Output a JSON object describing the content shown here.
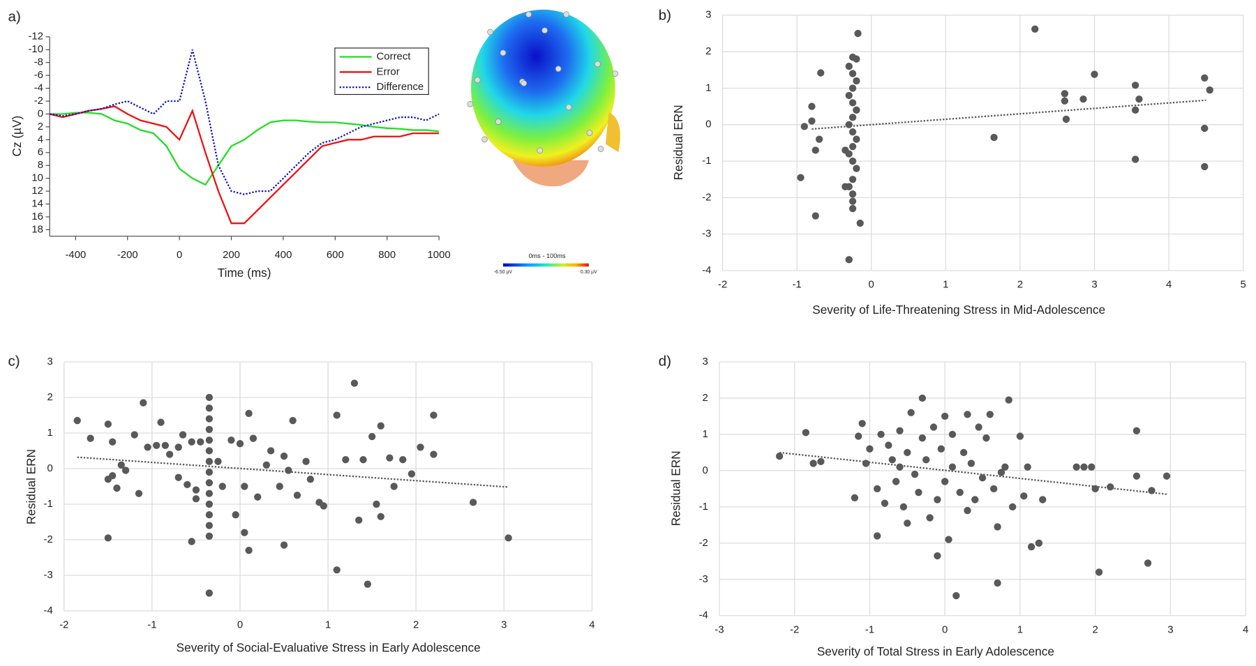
{
  "chart_data": [
    {
      "type": "line",
      "panel_label": "a)",
      "xlabel": "Time (ms)",
      "ylabel": "Cz (µV)",
      "y_inverted": true,
      "xlim": [
        -500,
        1000
      ],
      "xticks": [
        -400,
        -200,
        0,
        200,
        400,
        600,
        800,
        1000
      ],
      "ylim": [
        -12,
        19
      ],
      "yticks": [
        -12,
        -10,
        -8,
        -6,
        -4,
        -2,
        0,
        2,
        4,
        6,
        8,
        10,
        12,
        14,
        16,
        18
      ],
      "x": [
        -500,
        -450,
        -400,
        -350,
        -300,
        -250,
        -200,
        -150,
        -100,
        -50,
        0,
        50,
        100,
        150,
        200,
        250,
        300,
        350,
        400,
        450,
        500,
        550,
        600,
        650,
        700,
        750,
        800,
        850,
        900,
        950,
        1000
      ],
      "series": [
        {
          "name": "Correct",
          "color": "#22dd22",
          "style": "solid",
          "values": [
            0,
            0,
            -0.2,
            -0.2,
            0,
            1,
            1.5,
            2.5,
            3,
            5,
            8.5,
            10,
            11,
            8,
            5,
            4,
            2.5,
            1.3,
            1,
            1,
            1.2,
            1.3,
            1.3,
            1.5,
            1.7,
            2,
            2.2,
            2.3,
            2.5,
            2.5,
            2.7
          ]
        },
        {
          "name": "Error",
          "color": "#ee1111",
          "style": "solid",
          "values": [
            0,
            0.5,
            0,
            -0.5,
            -0.8,
            -1.2,
            0,
            1,
            1.5,
            2,
            4,
            -0.5,
            6,
            12,
            17,
            17,
            15,
            13,
            11,
            9,
            7,
            5,
            4.5,
            4,
            4,
            3.5,
            3.5,
            3.5,
            3,
            3,
            3
          ]
        },
        {
          "name": "Difference",
          "color": "#1111cc",
          "style": "dotted",
          "values": [
            0,
            0.3,
            0,
            -0.5,
            -0.8,
            -1.5,
            -2,
            -1,
            0,
            -2,
            -2,
            -10,
            -2,
            8,
            12,
            12.5,
            12,
            12,
            10,
            8,
            6,
            4.5,
            4,
            3,
            2,
            1.5,
            1,
            0.5,
            0.5,
            1,
            0
          ]
        }
      ],
      "colorbar": {
        "title": "0ms - 100ms",
        "min_label": "-6.50 µV",
        "max_label": "0.30 µV"
      }
    },
    {
      "type": "scatter",
      "panel_label": "b)",
      "xlabel": "Severity of Life-Threatening Stress in Mid-Adolescence",
      "ylabel": "Residual ERN",
      "color": "#595959",
      "grid": true,
      "xlim": [
        -2,
        5
      ],
      "xticks": [
        -2,
        -1,
        0,
        1,
        2,
        3,
        4,
        5
      ],
      "ylim": [
        -4,
        3
      ],
      "yticks": [
        -4,
        -3,
        -2,
        -1,
        0,
        1,
        2,
        3
      ],
      "x": [
        -0.3,
        -0.15,
        -0.25,
        -0.25,
        -0.25,
        -0.3,
        -0.25,
        -0.2,
        -0.25,
        -0.3,
        -0.25,
        -0.2,
        -0.25,
        -0.3,
        -0.25,
        -0.2,
        -0.25,
        -0.3,
        -0.25,
        -0.2,
        -0.25,
        -0.3,
        -0.25,
        -0.2,
        -0.18,
        -0.95,
        -0.75,
        -0.9,
        -0.8,
        -0.8,
        -0.75,
        -0.7,
        -0.68,
        -0.35,
        -0.35,
        1.65,
        2.2,
        2.6,
        2.6,
        2.62,
        2.85,
        3,
        3.55,
        3.55,
        3.55,
        3.6,
        4.48,
        4.48,
        4.48,
        4.55
      ],
      "y": [
        -3.7,
        -2.7,
        -2.3,
        -2.1,
        -1.9,
        -1.7,
        -1.5,
        -1.2,
        -1.0,
        -0.8,
        -0.6,
        -0.4,
        -0.2,
        0,
        0.2,
        0.4,
        0.6,
        0.8,
        1.0,
        1.2,
        1.4,
        1.6,
        1.85,
        1.8,
        2.5,
        -1.45,
        -2.5,
        -0.05,
        0.1,
        0.5,
        -0.7,
        -0.4,
        1.42,
        -0.7,
        -1.7,
        -0.35,
        2.62,
        0.85,
        0.65,
        0.15,
        0.7,
        1.38,
        1.08,
        0.4,
        -0.95,
        0.7,
        1.28,
        -0.1,
        -1.15,
        0.95
      ],
      "trendline": {
        "x": [
          -0.8,
          4.5
        ],
        "y": [
          -0.12,
          0.67
        ]
      }
    },
    {
      "type": "scatter",
      "panel_label": "c)",
      "xlabel": "Severity of Social-Evaluative Stress in Early Adolescence",
      "ylabel": "Residual ERN",
      "color": "#595959",
      "grid": true,
      "xlim": [
        -2,
        4
      ],
      "xticks": [
        -2,
        -1,
        0,
        1,
        2,
        3,
        4
      ],
      "ylim": [
        -4,
        3
      ],
      "yticks": [
        -4,
        -3,
        -2,
        -1,
        0,
        1,
        2,
        3
      ],
      "x": [
        -1.85,
        -1.7,
        -1.5,
        -1.5,
        -1.45,
        -1.45,
        -1.4,
        -1.35,
        -1.3,
        -1.2,
        -1.15,
        -1.1,
        -1.05,
        -0.95,
        -0.9,
        -0.85,
        -0.8,
        -0.7,
        -0.7,
        -0.65,
        -0.6,
        -0.55,
        -0.55,
        -0.5,
        -0.45,
        -0.5,
        -1.5,
        -0.35,
        -0.35,
        -0.35,
        -0.35,
        -0.35,
        -0.35,
        -0.35,
        -0.35,
        -0.35,
        -0.35,
        -0.35,
        -0.35,
        -0.35,
        -0.35,
        -0.35,
        -0.25,
        -0.2,
        -0.1,
        -0.05,
        0,
        0.05,
        0.1,
        0.1,
        0.05,
        0.15,
        0.2,
        0.3,
        0.35,
        0.45,
        0.5,
        0.5,
        0.55,
        0.6,
        0.65,
        0.75,
        0.8,
        0.9,
        0.95,
        1.1,
        1.1,
        1.2,
        1.3,
        1.35,
        1.4,
        1.45,
        1.5,
        1.55,
        1.6,
        1.6,
        1.7,
        1.75,
        1.85,
        1.95,
        2.05,
        2.2,
        2.2,
        2.65,
        3.05
      ],
      "y": [
        1.35,
        0.85,
        1.25,
        -0.3,
        0.75,
        -0.2,
        -0.55,
        0.1,
        -0.05,
        0.95,
        -0.7,
        1.85,
        0.6,
        0.65,
        1.3,
        0.65,
        0.4,
        -0.25,
        0.6,
        0.95,
        -0.45,
        -2.05,
        0.75,
        -0.6,
        0.75,
        -0.85,
        -1.95,
        -3.5,
        -1.9,
        -1.6,
        -1.3,
        -1.0,
        -0.7,
        -0.4,
        -0.1,
        0.2,
        0.5,
        0.8,
        1.1,
        1.4,
        1.7,
        2.0,
        0.2,
        -0.5,
        0.8,
        -1.3,
        0.7,
        -0.5,
        1.55,
        -2.3,
        -1.8,
        0.85,
        -0.8,
        0.1,
        0.5,
        -0.5,
        0.35,
        -2.15,
        -0.05,
        1.35,
        -0.75,
        0.2,
        -0.3,
        -0.95,
        -1.05,
        1.5,
        -2.85,
        0.25,
        2.4,
        -1.45,
        0.25,
        -3.25,
        0.9,
        -1.0,
        1.2,
        -1.35,
        0.3,
        -0.5,
        0.25,
        -0.15,
        0.6,
        1.5,
        0.4,
        -0.95,
        -1.95
      ],
      "trendline": {
        "x": [
          -1.85,
          3.05
        ],
        "y": [
          0.32,
          -0.52
        ]
      }
    },
    {
      "type": "scatter",
      "panel_label": "d)",
      "xlabel": "Severity of Total Stress in Early Adolescence",
      "ylabel": "Residual ERN",
      "color": "#595959",
      "grid": true,
      "xlim": [
        -3,
        4
      ],
      "xticks": [
        -3,
        -2,
        -1,
        0,
        1,
        2,
        3,
        4
      ],
      "ylim": [
        -4,
        3
      ],
      "yticks": [
        -4,
        -3,
        -2,
        -1,
        0,
        1,
        2,
        3
      ],
      "x": [
        -2.2,
        -1.85,
        -1.75,
        -1.65,
        -1.2,
        -1.15,
        -1.1,
        -1.05,
        -1.0,
        -0.9,
        -0.9,
        -0.85,
        -0.8,
        -0.75,
        -0.7,
        -0.65,
        -0.6,
        -0.55,
        -0.5,
        -0.5,
        -0.45,
        -0.4,
        -0.35,
        -0.3,
        -0.3,
        -0.25,
        -0.2,
        -0.15,
        -0.1,
        -0.05,
        0,
        0,
        0.05,
        0.1,
        0.1,
        0.15,
        0.2,
        0.25,
        0.3,
        0.3,
        0.35,
        0.4,
        0.45,
        0.5,
        0.55,
        0.6,
        0.65,
        0.7,
        0.7,
        0.8,
        0.85,
        0.9,
        1.0,
        1.05,
        1.1,
        1.15,
        1.25,
        1.3,
        1.75,
        1.85,
        1.95,
        2.0,
        2.05,
        2.2,
        2.55,
        2.55,
        2.7,
        2.75,
        2.95,
        -0.1,
        -0.6,
        0.75
      ],
      "y": [
        0.4,
        1.05,
        0.2,
        0.25,
        -0.75,
        0.95,
        1.3,
        0.2,
        0.6,
        -1.8,
        -0.5,
        1.0,
        -0.9,
        0.7,
        0.3,
        -0.3,
        1.1,
        -1.0,
        -1.45,
        0.5,
        1.6,
        -0.1,
        -0.6,
        2.0,
        0.9,
        0.3,
        -1.3,
        1.2,
        -0.8,
        0.6,
        1.5,
        -0.3,
        -1.9,
        0.1,
        1.0,
        -3.45,
        -0.6,
        0.5,
        1.55,
        -1.1,
        0.2,
        -0.8,
        1.2,
        -0.2,
        0.9,
        1.55,
        -0.5,
        -3.1,
        -1.55,
        0.1,
        1.95,
        -1.0,
        0.95,
        -0.7,
        0.1,
        -2.1,
        -2.0,
        -0.8,
        0.1,
        0.1,
        0.1,
        -0.5,
        -2.8,
        -0.45,
        1.1,
        -0.15,
        -2.55,
        -0.55,
        -0.15,
        -2.35,
        0.1,
        -0.05
      ],
      "trendline": {
        "x": [
          -2.2,
          2.95
        ],
        "y": [
          0.5,
          -0.65
        ]
      }
    }
  ]
}
